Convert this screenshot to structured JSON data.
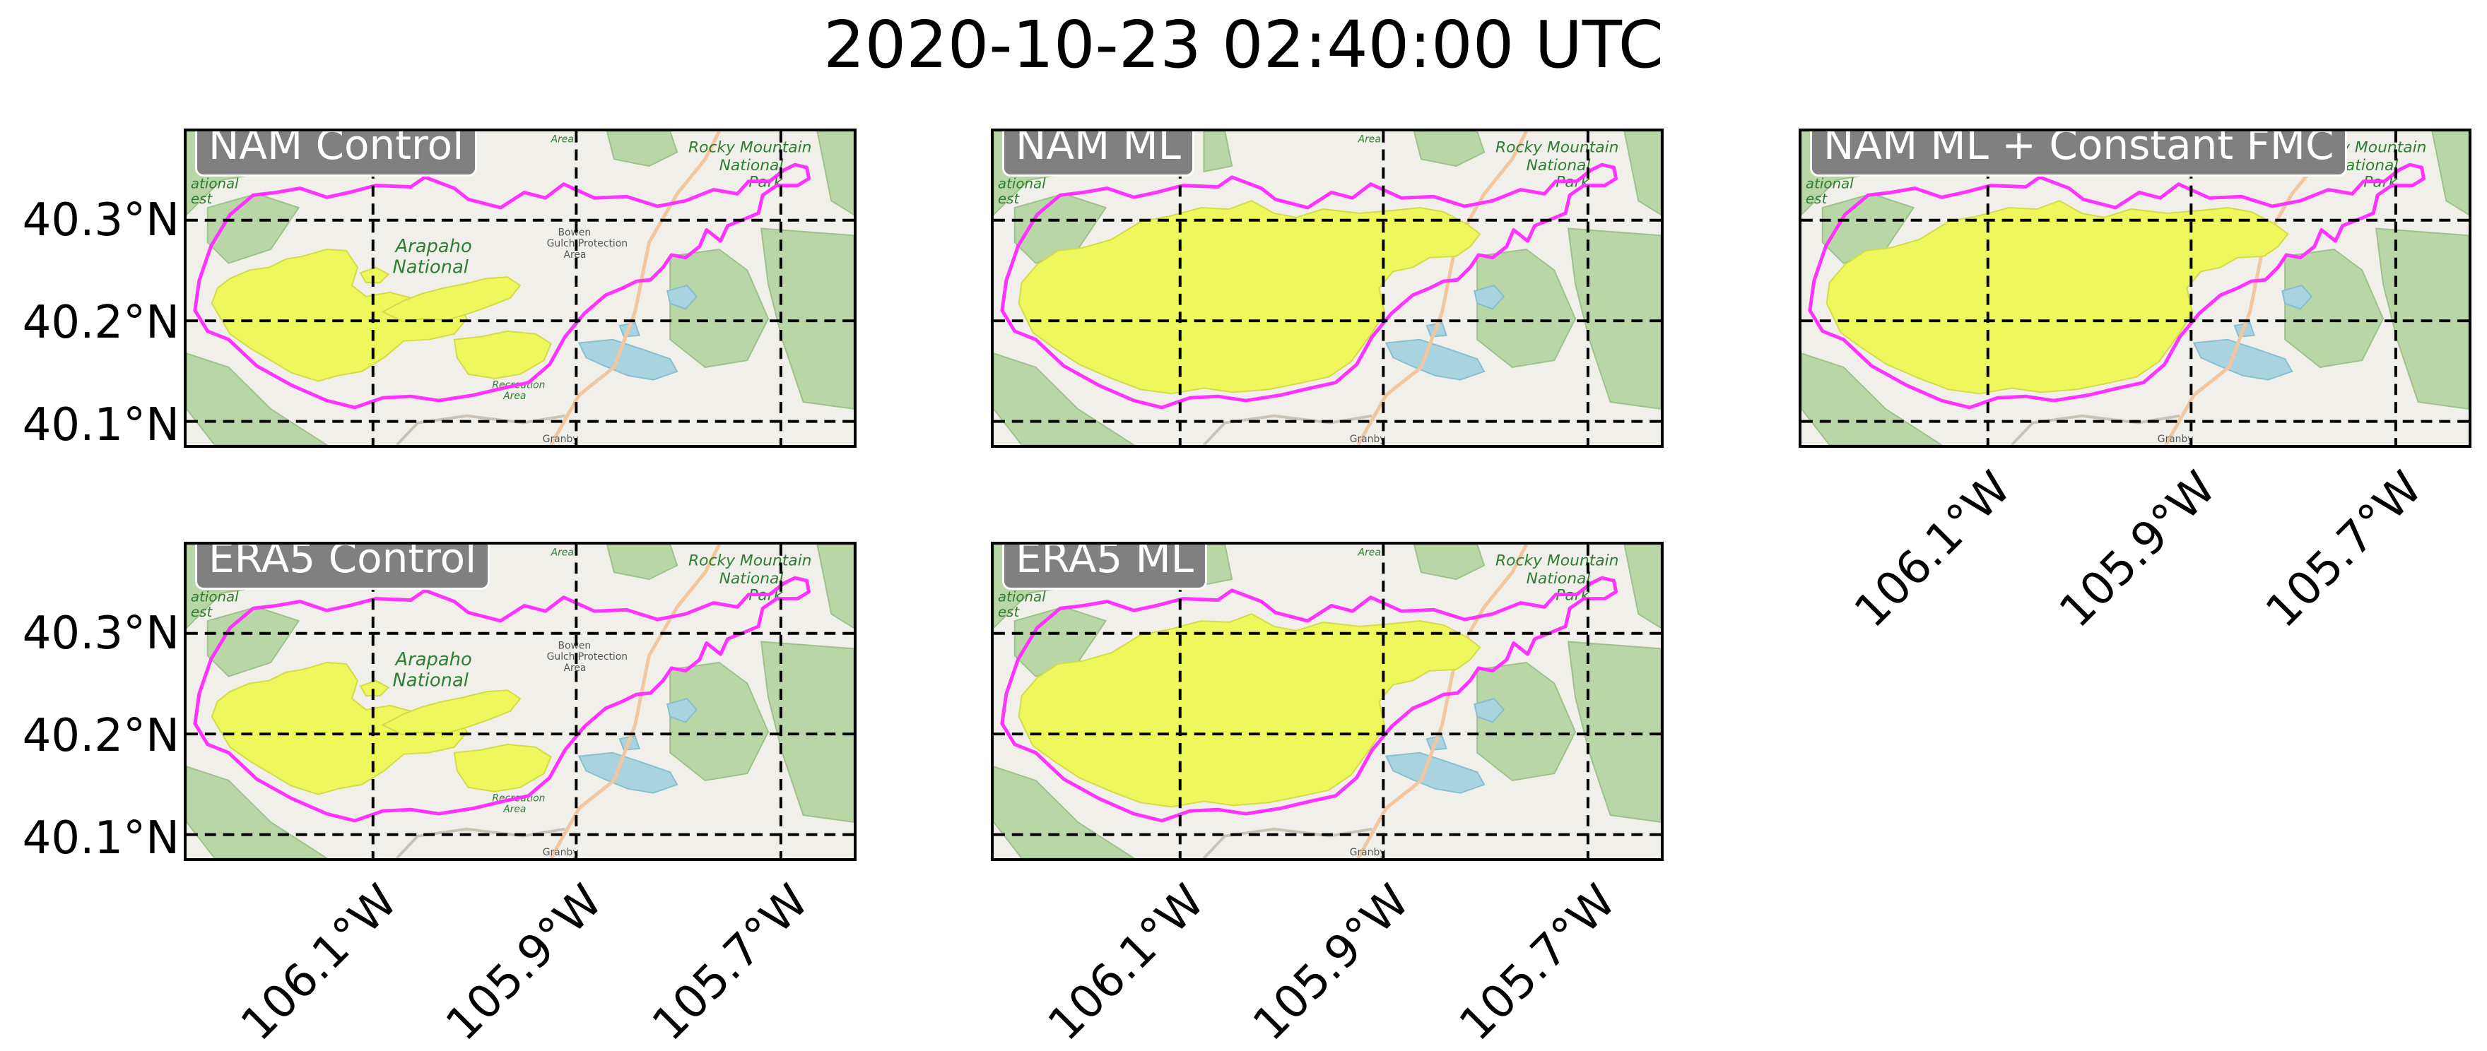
{
  "figure": {
    "title": "2020-10-23 02:40:00 UTC"
  },
  "colors": {
    "perimeter": "#ff33ff",
    "burned_area": "#eef75c",
    "forest": "#b9d7a6",
    "basemap": "#f1efe9",
    "lake": "#a9d3df",
    "grid": "#000000",
    "title_box": "#808080"
  },
  "map_labels": {
    "forest_left": "ational",
    "forest_left_2": "est",
    "area_top": "Area",
    "rmnp_1": "Rocky Mountain",
    "rmnp_2": "National",
    "rmnp_3": "Park",
    "arapaho_1": "Arapaho",
    "arapaho_2": "National",
    "bowen_1": "Bowen",
    "bowen_2": "Gulch Protection",
    "bowen_3": "Area",
    "recreation_1": "Recreation",
    "recreation_2": "Area",
    "town": "Granby"
  },
  "axes": {
    "lat_ticks": [
      "40.3°N",
      "40.2°N",
      "40.1°N"
    ],
    "lon_ticks": [
      "106.1°W",
      "105.9°W",
      "105.7°W"
    ]
  },
  "panels": [
    {
      "id": "nam-control",
      "title": "NAM Control",
      "burn_extent": "partial",
      "show_town_labels": true
    },
    {
      "id": "nam-ml",
      "title": "NAM ML",
      "burn_extent": "full",
      "show_town_labels": false
    },
    {
      "id": "nam-ml-const-fmc",
      "title": "NAM ML + Constant FMC",
      "burn_extent": "full",
      "show_town_labels": false
    },
    {
      "id": "era5-control",
      "title": "ERA5 Control",
      "burn_extent": "partial",
      "show_town_labels": true
    },
    {
      "id": "era5-ml",
      "title": "ERA5 ML",
      "burn_extent": "full",
      "show_town_labels": false
    }
  ]
}
